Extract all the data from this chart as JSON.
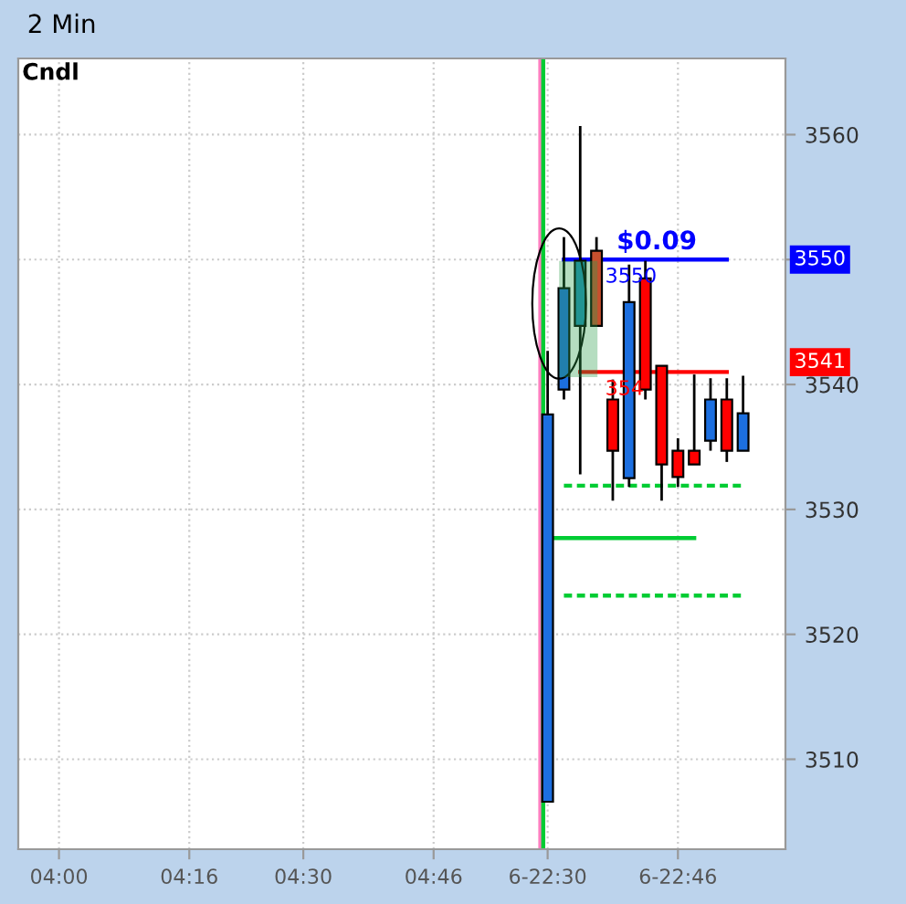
{
  "chart_data": {
    "type": "candlestick",
    "title": "2 Min",
    "categories": [
      null,
      null,
      "04:00",
      null,
      null,
      null,
      null,
      null,
      null,
      null,
      "04:16",
      null,
      null,
      null,
      null,
      null,
      null,
      "04:30",
      null,
      null,
      null,
      null,
      null,
      null,
      null,
      "04:46",
      null,
      null,
      null,
      null,
      null,
      null,
      "6-22:30",
      null,
      null,
      null,
      null,
      null,
      null,
      null,
      "6-22:46",
      null,
      null,
      null,
      null,
      null
    ],
    "ohlc": [
      null,
      null,
      null,
      null,
      null,
      null,
      null,
      null,
      null,
      null,
      null,
      null,
      null,
      null,
      null,
      null,
      null,
      null,
      null,
      null,
      null,
      null,
      null,
      null,
      null,
      null,
      null,
      null,
      null,
      null,
      null,
      null,
      [
        3506.6,
        3542.7,
        3506.6,
        3537.6
      ],
      [
        3539.6,
        3551.8,
        3538.8,
        3547.7
      ],
      [
        3544.7,
        3560.7,
        3532.8,
        3549.9
      ],
      [
        3550.7,
        3551.8,
        3544.7,
        3544.7
      ],
      [
        3538.8,
        3540.4,
        3530.7,
        3534.7
      ],
      [
        3532.5,
        3549.6,
        3531.8,
        3546.6
      ],
      [
        3548.5,
        3549.9,
        3538.8,
        3539.6
      ],
      [
        3541.5,
        3541.5,
        3530.7,
        3533.6
      ],
      [
        3534.7,
        3535.7,
        3531.8,
        3532.6
      ],
      [
        3534.7,
        3540.8,
        3533.6,
        3533.6
      ],
      [
        3535.5,
        3540.5,
        3534.7,
        3538.8
      ],
      [
        3538.8,
        3540.5,
        3533.8,
        3534.7
      ],
      [
        3534.7,
        3540.7,
        3534.7,
        3537.7
      ],
      null
    ],
    "colors": [
      null,
      null,
      null,
      null,
      null,
      null,
      null,
      null,
      null,
      null,
      null,
      null,
      null,
      null,
      null,
      null,
      null,
      null,
      null,
      null,
      null,
      null,
      null,
      null,
      null,
      null,
      null,
      null,
      null,
      null,
      null,
      null,
      "#1c6fe0",
      "#1c6fe0",
      "#1c8fb8",
      "#c8502e",
      "#ff0000",
      "#1c6fe0",
      "#ff0000",
      "#ff0000",
      "#ff0000",
      "#ff0000",
      "#1c6fe0",
      "#ff0000",
      "#1c6fe0",
      null
    ],
    "series": [
      {
        "type": "line",
        "color": "#0000ff",
        "line_style": "solid",
        "values": [
          null,
          null,
          null,
          null,
          null,
          null,
          null,
          null,
          null,
          null,
          null,
          null,
          null,
          null,
          null,
          null,
          null,
          null,
          null,
          null,
          null,
          null,
          null,
          null,
          null,
          null,
          null,
          null,
          null,
          null,
          null,
          null,
          null,
          3550,
          3550,
          3550,
          3550,
          3550,
          3550,
          3550,
          3550,
          3550,
          3550,
          3550,
          null,
          null
        ]
      },
      {
        "type": "line",
        "color": "#ff0000",
        "line_style": "solid",
        "values": [
          null,
          null,
          null,
          null,
          null,
          null,
          null,
          null,
          null,
          null,
          null,
          null,
          null,
          null,
          null,
          null,
          null,
          null,
          null,
          null,
          null,
          null,
          null,
          null,
          null,
          null,
          null,
          null,
          null,
          null,
          null,
          null,
          null,
          null,
          3541,
          3541,
          3541,
          3541,
          3541,
          3541,
          3541,
          3541,
          3541,
          3541,
          null,
          null
        ]
      },
      {
        "type": "line",
        "color": "#00cc33",
        "line_style": "dashed",
        "values": [
          null,
          null,
          null,
          null,
          null,
          null,
          null,
          null,
          null,
          null,
          null,
          null,
          null,
          null,
          null,
          null,
          null,
          null,
          null,
          null,
          null,
          null,
          null,
          null,
          null,
          null,
          null,
          null,
          null,
          null,
          null,
          null,
          null,
          3531.9,
          3531.9,
          3531.9,
          3531.9,
          3531.9,
          3531.9,
          3531.9,
          3531.9,
          3531.9,
          3531.9,
          3531.9,
          3531.9,
          null
        ]
      },
      {
        "type": "line",
        "color": "#00cc33",
        "line_style": "solid",
        "values": [
          null,
          null,
          null,
          null,
          null,
          null,
          null,
          null,
          null,
          null,
          null,
          null,
          null,
          null,
          null,
          null,
          null,
          null,
          null,
          null,
          null,
          null,
          null,
          null,
          null,
          null,
          null,
          null,
          null,
          null,
          null,
          null,
          3527.7,
          3527.7,
          3527.7,
          3527.7,
          3527.7,
          3527.7,
          3527.7,
          3527.7,
          3527.7,
          3527.7,
          null,
          null,
          null,
          null
        ]
      },
      {
        "type": "line",
        "color": "#00cc33",
        "line_style": "dashed",
        "values": [
          null,
          null,
          null,
          null,
          null,
          null,
          null,
          null,
          null,
          null,
          null,
          null,
          null,
          null,
          null,
          null,
          null,
          null,
          null,
          null,
          null,
          null,
          null,
          null,
          null,
          null,
          null,
          null,
          null,
          null,
          null,
          null,
          null,
          3523.1,
          3523.1,
          3523.1,
          3523.1,
          3523.1,
          3523.1,
          3523.1,
          3523.1,
          3523.1,
          3523.1,
          3523.1,
          3523.1,
          null
        ]
      }
    ],
    "ref_lines": [
      {
        "axis": "x",
        "value": "6-22:30",
        "color": "#ff80c0"
      },
      {
        "axis": "x",
        "value": "6-22:30",
        "color": "#00cc33"
      }
    ],
    "annotations": [
      "Cndl",
      {
        "text": "$0.09",
        "y": 3550
      },
      "3550",
      {
        "text": "354",
        "y": 3541
      },
      "3550",
      "3541"
    ],
    "ylim": [
      3502.8,
      3566.1
    ],
    "yticks": [
      3510,
      3520,
      3530,
      3540,
      {
        "value": 3550,
        "label": null
      },
      3560
    ],
    "grid": true,
    "marker": "none"
  }
}
